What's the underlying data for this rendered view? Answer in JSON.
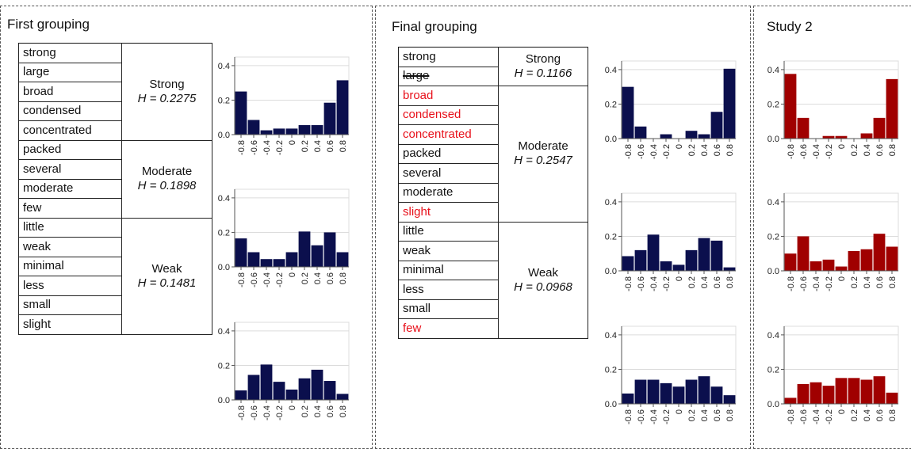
{
  "panels": [
    {
      "title": "First grouping",
      "groups": [
        {
          "name": "Strong",
          "h": "H = 0.2275",
          "words": [
            {
              "text": "strong"
            },
            {
              "text": "large"
            },
            {
              "text": "broad"
            },
            {
              "text": "condensed"
            },
            {
              "text": "concentrated"
            }
          ]
        },
        {
          "name": "Moderate",
          "h": "H = 0.1898",
          "words": [
            {
              "text": "packed"
            },
            {
              "text": "several"
            },
            {
              "text": "moderate"
            },
            {
              "text": "few"
            }
          ]
        },
        {
          "name": "Weak",
          "h": "H = 0.1481",
          "words": [
            {
              "text": "little"
            },
            {
              "text": "weak"
            },
            {
              "text": "minimal"
            },
            {
              "text": "less"
            },
            {
              "text": "small"
            },
            {
              "text": "slight"
            }
          ]
        }
      ]
    },
    {
      "title": "Final grouping",
      "groups": [
        {
          "name": "Strong",
          "h": "H = 0.1166",
          "words": [
            {
              "text": "strong"
            },
            {
              "text": "large",
              "style": "strike"
            }
          ]
        },
        {
          "name": "Moderate",
          "h": "H = 0.2547",
          "words": [
            {
              "text": "broad",
              "style": "red"
            },
            {
              "text": "condensed",
              "style": "red"
            },
            {
              "text": "concentrated",
              "style": "red"
            },
            {
              "text": "packed"
            },
            {
              "text": "several"
            },
            {
              "text": "moderate"
            },
            {
              "text": "slight",
              "style": "red"
            }
          ]
        },
        {
          "name": "Weak",
          "h": "H = 0.0968",
          "words": [
            {
              "text": "little"
            },
            {
              "text": "weak"
            },
            {
              "text": "minimal"
            },
            {
              "text": "less"
            },
            {
              "text": "small"
            },
            {
              "text": "few",
              "style": "red"
            }
          ]
        }
      ]
    },
    {
      "title": "Study 2",
      "groups": []
    }
  ],
  "colors": {
    "navy": "#0b0f4d",
    "red": "#a00000",
    "axis": "#555555",
    "grid": "#dcdcdc",
    "highlight": "#e8101a"
  },
  "chart_data": [
    {
      "id": "first-strong",
      "type": "bar",
      "x": [
        -0.8,
        -0.6,
        -0.4,
        -0.2,
        0,
        0.2,
        0.4,
        0.6,
        0.8
      ],
      "values": [
        0.25,
        0.085,
        0.025,
        0.035,
        0.035,
        0.055,
        0.055,
        0.185,
        0.315
      ],
      "yticks": [
        "0.0",
        "0.2",
        "0.4"
      ],
      "xticks": [
        "-0.8",
        "-0.6",
        "-0.4",
        "-0.2",
        "0",
        "0.2",
        "0.4",
        "0.6",
        "0.8"
      ],
      "ylim": [
        0,
        0.45
      ],
      "grid": true
    },
    {
      "id": "first-moderate",
      "type": "bar",
      "x": [
        -0.8,
        -0.6,
        -0.4,
        -0.2,
        0,
        0.2,
        0.4,
        0.6,
        0.8
      ],
      "values": [
        0.165,
        0.085,
        0.045,
        0.045,
        0.085,
        0.205,
        0.125,
        0.2,
        0.085
      ],
      "yticks": [
        "0.0",
        "0.2",
        "0.4"
      ],
      "xticks": [
        "-0.8",
        "-0.6",
        "-0.4",
        "-0.2",
        "0",
        "0.2",
        "0.4",
        "0.6",
        "0.8"
      ],
      "ylim": [
        0,
        0.45
      ],
      "grid": true
    },
    {
      "id": "first-weak",
      "type": "bar",
      "x": [
        -0.8,
        -0.6,
        -0.4,
        -0.2,
        0,
        0.2,
        0.4,
        0.6,
        0.8
      ],
      "values": [
        0.055,
        0.145,
        0.205,
        0.105,
        0.06,
        0.125,
        0.175,
        0.11,
        0.035
      ],
      "yticks": [
        "0.0",
        "0.2",
        "0.4"
      ],
      "xticks": [
        "-0.8",
        "-0.6",
        "-0.4",
        "-0.2",
        "0",
        "0.2",
        "0.4",
        "0.6",
        "0.8"
      ],
      "ylim": [
        0,
        0.45
      ],
      "grid": true
    },
    {
      "id": "final-strong",
      "type": "bar",
      "x": [
        -0.8,
        -0.6,
        -0.4,
        -0.2,
        0,
        0.2,
        0.4,
        0.6,
        0.8
      ],
      "values": [
        0.3,
        0.07,
        0,
        0.025,
        0,
        0.045,
        0.025,
        0.155,
        0.405
      ],
      "yticks": [
        "0.0",
        "0.2",
        "0.4"
      ],
      "xticks": [
        "-0.8",
        "-0.6",
        "-0.4",
        "-0.2",
        "0",
        "0.2",
        "0.4",
        "0.6",
        "0.8"
      ],
      "ylim": [
        0,
        0.45
      ],
      "grid": true
    },
    {
      "id": "final-moderate",
      "type": "bar",
      "x": [
        -0.8,
        -0.6,
        -0.4,
        -0.2,
        0,
        0.2,
        0.4,
        0.6,
        0.8
      ],
      "values": [
        0.085,
        0.12,
        0.21,
        0.055,
        0.035,
        0.12,
        0.19,
        0.175,
        0.02
      ],
      "yticks": [
        "0.0",
        "0.2",
        "0.4"
      ],
      "xticks": [
        "-0.8",
        "-0.6",
        "-0.4",
        "-0.2",
        "0",
        "0.2",
        "0.4",
        "0.6",
        "0.8"
      ],
      "ylim": [
        0,
        0.45
      ],
      "grid": true
    },
    {
      "id": "final-weak",
      "type": "bar",
      "x": [
        -0.8,
        -0.6,
        -0.4,
        -0.2,
        0,
        0.2,
        0.4,
        0.6,
        0.8
      ],
      "values": [
        0.06,
        0.14,
        0.14,
        0.12,
        0.1,
        0.14,
        0.16,
        0.1,
        0.05
      ],
      "yticks": [
        "0.0",
        "0.2",
        "0.4"
      ],
      "xticks": [
        "-0.8",
        "-0.6",
        "-0.4",
        "-0.2",
        "0",
        "0.2",
        "0.4",
        "0.6",
        "0.8"
      ],
      "ylim": [
        0,
        0.45
      ],
      "grid": true
    },
    {
      "id": "study2-strong",
      "type": "bar",
      "x": [
        -0.8,
        -0.6,
        -0.4,
        -0.2,
        0,
        0.2,
        0.4,
        0.6,
        0.8
      ],
      "values": [
        0.375,
        0.12,
        0,
        0.015,
        0.015,
        0,
        0.03,
        0.12,
        0.345
      ],
      "yticks": [
        "0.0",
        "0.2",
        "0.4"
      ],
      "xticks": [
        "-0.8",
        "-0.6",
        "-0.4",
        "-0.2",
        "0",
        "0.2",
        "0.4",
        "0.6",
        "0.8"
      ],
      "ylim": [
        0,
        0.45
      ],
      "grid": true
    },
    {
      "id": "study2-moderate",
      "type": "bar",
      "x": [
        -0.8,
        -0.6,
        -0.4,
        -0.2,
        0,
        0.2,
        0.4,
        0.6,
        0.8
      ],
      "values": [
        0.1,
        0.2,
        0.055,
        0.065,
        0.025,
        0.115,
        0.125,
        0.215,
        0.14
      ],
      "yticks": [
        "0.0",
        "0.2",
        "0.4"
      ],
      "xticks": [
        "-0.8",
        "-0.6",
        "-0.4",
        "-0.2",
        "0",
        "0.2",
        "0.4",
        "0.6",
        "0.8"
      ],
      "ylim": [
        0,
        0.45
      ],
      "grid": true
    },
    {
      "id": "study2-weak",
      "type": "bar",
      "x": [
        -0.8,
        -0.6,
        -0.4,
        -0.2,
        0,
        0.2,
        0.4,
        0.6,
        0.8
      ],
      "values": [
        0.035,
        0.115,
        0.125,
        0.105,
        0.15,
        0.15,
        0.14,
        0.16,
        0.065
      ],
      "yticks": [
        "0.0",
        "0.2",
        "0.4"
      ],
      "xticks": [
        "-0.8",
        "-0.6",
        "-0.4",
        "-0.2",
        "0",
        "0.2",
        "0.4",
        "0.6",
        "0.8"
      ],
      "ylim": [
        0,
        0.45
      ],
      "grid": true
    }
  ]
}
